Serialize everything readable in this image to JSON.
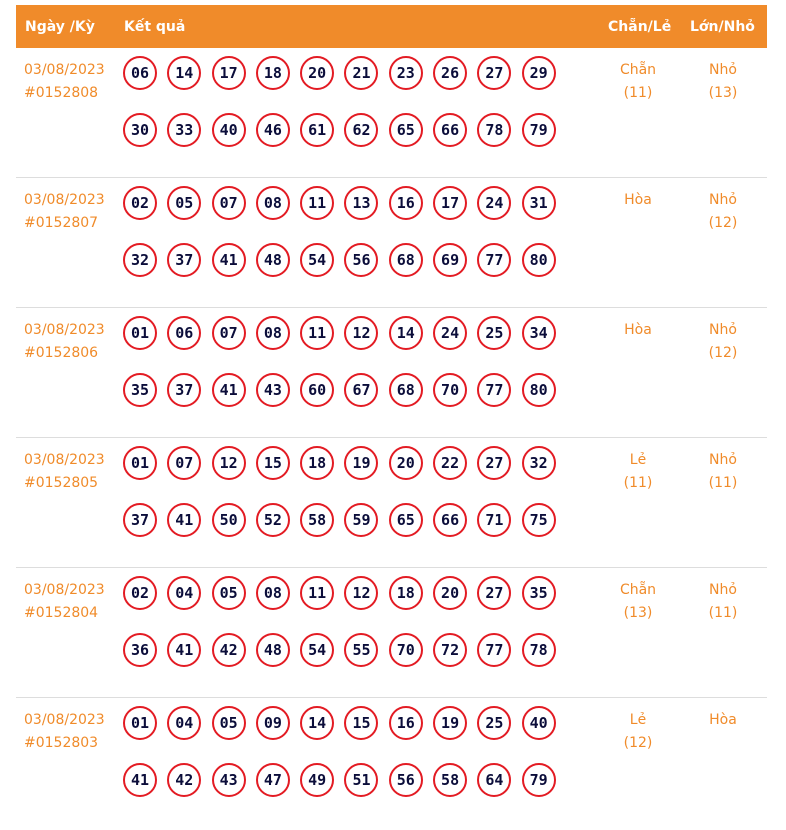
{
  "header": {
    "date_label": "Ngày /Kỳ",
    "result_label": "Kết quả",
    "parity_label": "Chẵn/Lẻ",
    "size_label": "Lớn/Nhỏ"
  },
  "rows": [
    {
      "date": "03/08/2023",
      "draw": "#0152808",
      "numbers": [
        [
          "06",
          "14",
          "17",
          "18",
          "20",
          "21",
          "23",
          "26",
          "27",
          "29"
        ],
        [
          "30",
          "33",
          "40",
          "46",
          "61",
          "62",
          "65",
          "66",
          "78",
          "79"
        ]
      ],
      "parity": "Chẵn",
      "parity_count": "(11)",
      "size": "Nhỏ",
      "size_count": "(13)"
    },
    {
      "date": "03/08/2023",
      "draw": "#0152807",
      "numbers": [
        [
          "02",
          "05",
          "07",
          "08",
          "11",
          "13",
          "16",
          "17",
          "24",
          "31"
        ],
        [
          "32",
          "37",
          "41",
          "48",
          "54",
          "56",
          "68",
          "69",
          "77",
          "80"
        ]
      ],
      "parity": "Hòa",
      "parity_count": "",
      "size": "Nhỏ",
      "size_count": "(12)"
    },
    {
      "date": "03/08/2023",
      "draw": "#0152806",
      "numbers": [
        [
          "01",
          "06",
          "07",
          "08",
          "11",
          "12",
          "14",
          "24",
          "25",
          "34"
        ],
        [
          "35",
          "37",
          "41",
          "43",
          "60",
          "67",
          "68",
          "70",
          "77",
          "80"
        ]
      ],
      "parity": "Hòa",
      "parity_count": "",
      "size": "Nhỏ",
      "size_count": "(12)"
    },
    {
      "date": "03/08/2023",
      "draw": "#0152805",
      "numbers": [
        [
          "01",
          "07",
          "12",
          "15",
          "18",
          "19",
          "20",
          "22",
          "27",
          "32"
        ],
        [
          "37",
          "41",
          "50",
          "52",
          "58",
          "59",
          "65",
          "66",
          "71",
          "75"
        ]
      ],
      "parity": "Lẻ",
      "parity_count": "(11)",
      "size": "Nhỏ",
      "size_count": "(11)"
    },
    {
      "date": "03/08/2023",
      "draw": "#0152804",
      "numbers": [
        [
          "02",
          "04",
          "05",
          "08",
          "11",
          "12",
          "18",
          "20",
          "27",
          "35"
        ],
        [
          "36",
          "41",
          "42",
          "48",
          "54",
          "55",
          "70",
          "72",
          "77",
          "78"
        ]
      ],
      "parity": "Chẵn",
      "parity_count": "(13)",
      "size": "Nhỏ",
      "size_count": "(11)"
    },
    {
      "date": "03/08/2023",
      "draw": "#0152803",
      "numbers": [
        [
          "01",
          "04",
          "05",
          "09",
          "14",
          "15",
          "16",
          "19",
          "25",
          "40"
        ],
        [
          "41",
          "42",
          "43",
          "47",
          "49",
          "51",
          "56",
          "58",
          "64",
          "79"
        ]
      ],
      "parity": "Lẻ",
      "parity_count": "(12)",
      "size": "Hòa",
      "size_count": ""
    }
  ],
  "colors": {
    "header_bg": "#f08b2a",
    "accent_text": "#f08b2a",
    "ball_border": "#e31b23",
    "ball_text": "#0b0d3a"
  }
}
